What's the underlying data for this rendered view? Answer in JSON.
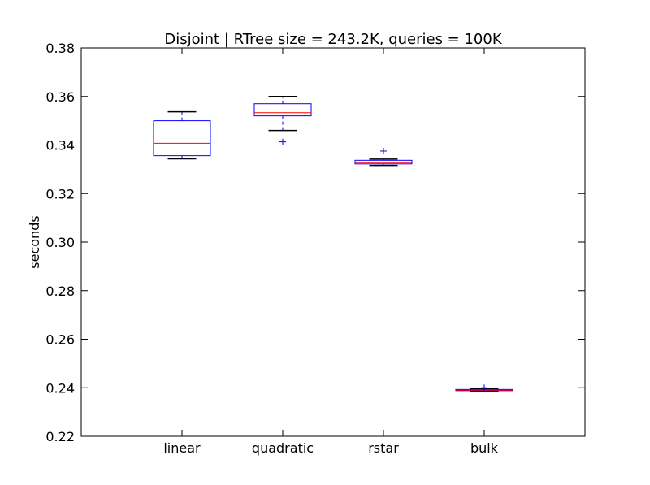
{
  "chart_data": {
    "type": "box",
    "title": "Disjoint | RTree size = 243.2K, queries = 100K",
    "xlabel": "",
    "ylabel": "seconds",
    "ylim": [
      0.22,
      0.38
    ],
    "yticks": [
      "0.22",
      "0.24",
      "0.26",
      "0.28",
      "0.30",
      "0.32",
      "0.34",
      "0.36",
      "0.38"
    ],
    "categories": [
      "linear",
      "quadratic",
      "rstar",
      "bulk"
    ],
    "boxes": [
      {
        "category": "linear",
        "whisker_low": 0.3343,
        "q1": 0.3356,
        "median": 0.3407,
        "q3": 0.35,
        "whisker_high": 0.3537,
        "outliers": []
      },
      {
        "category": "quadratic",
        "whisker_low": 0.346,
        "q1": 0.352,
        "median": 0.3533,
        "q3": 0.357,
        "whisker_high": 0.36,
        "outliers": [
          0.3413
        ]
      },
      {
        "category": "rstar",
        "whisker_low": 0.3316,
        "q1": 0.3322,
        "median": 0.3327,
        "q3": 0.3337,
        "whisker_high": 0.3342,
        "outliers": [
          0.3375
        ]
      },
      {
        "category": "bulk",
        "whisker_low": 0.2385,
        "q1": 0.2388,
        "median": 0.239,
        "q3": 0.2393,
        "whisker_high": 0.2395,
        "outliers": [
          0.24
        ]
      }
    ],
    "colors": {
      "box": "#0000ff",
      "median": "#ff0000",
      "whisker": "#000000",
      "outlier": "#0000ff"
    },
    "grid": false
  }
}
